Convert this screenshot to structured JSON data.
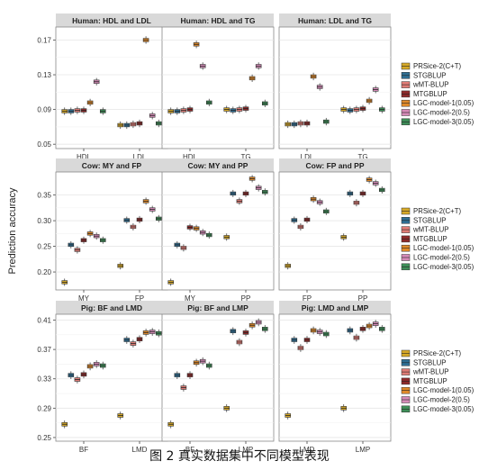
{
  "caption": "图 2 真实数据集中不同模型表现",
  "chart_data": {
    "type": "boxplot",
    "ylabel": "Prediction accuracy",
    "grid": true,
    "legend_position": "right",
    "models": [
      {
        "name": "PRSice-2(C+T)",
        "color": "#D6A928"
      },
      {
        "name": "STGBLUP",
        "color": "#2E6E93"
      },
      {
        "name": "wMT-BLUP",
        "color": "#E07C76"
      },
      {
        "name": "MTGBLUP",
        "color": "#8E2A2A"
      },
      {
        "name": "LGC-model-1(0.05)",
        "color": "#E08A2A"
      },
      {
        "name": "LGC-model-2(0.5)",
        "color": "#D68BB8"
      },
      {
        "name": "LGC-model-3(0.05)",
        "color": "#3E8E58"
      }
    ],
    "rows": [
      {
        "ylim": [
          0.045,
          0.185
        ],
        "ticks": [
          0.05,
          0.09,
          0.13,
          0.17
        ],
        "tick_labels": [
          "0.05",
          "0.09",
          "0.13",
          "0.17"
        ],
        "panels": [
          {
            "title": "Human: HDL and LDL",
            "groups": [
              {
                "label": "HDL",
                "medians": [
                  0.088,
                  0.088,
                  0.089,
                  0.089,
                  0.098,
                  0.122,
                  0.088
                ]
              },
              {
                "label": "LDL",
                "medians": [
                  0.072,
                  0.072,
                  0.073,
                  0.074,
                  0.17,
                  0.083,
                  0.074
                ]
              }
            ]
          },
          {
            "title": "Human: HDL and TG",
            "groups": [
              {
                "label": "HDL",
                "medians": [
                  0.088,
                  0.088,
                  0.089,
                  0.09,
                  0.165,
                  0.14,
                  0.098
                ]
              },
              {
                "label": "TG",
                "medians": [
                  0.09,
                  0.089,
                  0.09,
                  0.091,
                  0.126,
                  0.14,
                  0.097
                ]
              }
            ]
          },
          {
            "title": "Human: LDL and TG",
            "groups": [
              {
                "label": "LDL",
                "medians": [
                  0.073,
                  0.073,
                  0.074,
                  0.074,
                  0.128,
                  0.116,
                  0.076
                ]
              },
              {
                "label": "TG",
                "medians": [
                  0.09,
                  0.089,
                  0.09,
                  0.091,
                  0.1,
                  0.113,
                  0.09
                ]
              }
            ]
          }
        ]
      },
      {
        "ylim": [
          0.165,
          0.395
        ],
        "ticks": [
          0.2,
          0.25,
          0.3,
          0.35
        ],
        "tick_labels": [
          "0.20",
          "0.25",
          "0.30",
          "0.35"
        ],
        "panels": [
          {
            "title": "Cow: MY and FP",
            "groups": [
              {
                "label": "MY",
                "medians": [
                  0.18,
                  0.253,
                  0.243,
                  0.262,
                  0.275,
                  0.27,
                  0.262
                ]
              },
              {
                "label": "FP",
                "medians": [
                  0.212,
                  0.301,
                  0.288,
                  0.302,
                  0.338,
                  0.322,
                  0.304
                ]
              }
            ]
          },
          {
            "title": "Cow: MY and PP",
            "groups": [
              {
                "label": "MY",
                "medians": [
                  0.18,
                  0.253,
                  0.247,
                  0.287,
                  0.285,
                  0.277,
                  0.272
                ]
              },
              {
                "label": "PP",
                "medians": [
                  0.268,
                  0.353,
                  0.338,
                  0.353,
                  0.382,
                  0.364,
                  0.356
                ]
              }
            ]
          },
          {
            "title": "Cow: FP and PP",
            "groups": [
              {
                "label": "FP",
                "medians": [
                  0.212,
                  0.301,
                  0.288,
                  0.302,
                  0.342,
                  0.336,
                  0.318
                ]
              },
              {
                "label": "PP",
                "medians": [
                  0.268,
                  0.353,
                  0.335,
                  0.353,
                  0.38,
                  0.373,
                  0.36
                ]
              }
            ]
          }
        ]
      },
      {
        "ylim": [
          0.245,
          0.418
        ],
        "ticks": [
          0.25,
          0.29,
          0.33,
          0.37,
          0.41
        ],
        "tick_labels": [
          "0.25",
          "0.29",
          "0.33",
          "0.37",
          "0.41"
        ],
        "panels": [
          {
            "title": "Pig: BF and LMD",
            "groups": [
              {
                "label": "BF",
                "medians": [
                  0.268,
                  0.335,
                  0.329,
                  0.336,
                  0.347,
                  0.35,
                  0.348
                ]
              },
              {
                "label": "LMD",
                "medians": [
                  0.28,
                  0.383,
                  0.378,
                  0.384,
                  0.393,
                  0.394,
                  0.392
                ]
              }
            ]
          },
          {
            "title": "Pig: BF and LMP",
            "groups": [
              {
                "label": "BF",
                "medians": [
                  0.268,
                  0.335,
                  0.318,
                  0.335,
                  0.352,
                  0.354,
                  0.348
                ]
              },
              {
                "label": "LMP",
                "medians": [
                  0.29,
                  0.395,
                  0.38,
                  0.393,
                  0.403,
                  0.407,
                  0.398
                ]
              }
            ]
          },
          {
            "title": "Pig: LMD and LMP",
            "groups": [
              {
                "label": "LMD",
                "medians": [
                  0.28,
                  0.383,
                  0.372,
                  0.383,
                  0.396,
                  0.394,
                  0.391
                ]
              },
              {
                "label": "LMP",
                "medians": [
                  0.29,
                  0.396,
                  0.386,
                  0.398,
                  0.402,
                  0.405,
                  0.398
                ]
              }
            ]
          }
        ]
      }
    ]
  }
}
